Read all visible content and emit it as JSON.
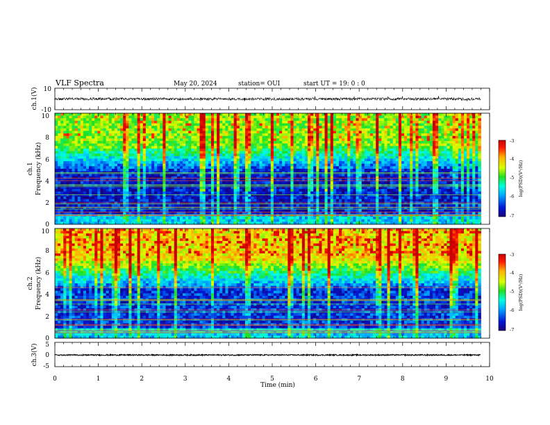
{
  "header": {
    "title": "VLF Spectra",
    "date": "May 20, 2024",
    "station": "station= OUI",
    "start_ut": "start  UT =   19: 0  : 0"
  },
  "colors": {
    "waveform": "#000000",
    "colormap": [
      "#1a0078",
      "#0018d8",
      "#00a8ff",
      "#00ffe0",
      "#20e020",
      "#d8ff00",
      "#ffb000",
      "#ff1a00",
      "#c80000"
    ]
  },
  "chart_data": [
    {
      "type": "line",
      "name": "ch1-waveform",
      "ylabel": "ch.1(V)",
      "yticks": [
        "10",
        "-10"
      ],
      "ylim": [
        -10,
        10
      ],
      "x_range": [
        0,
        9.8
      ],
      "level": 0.0,
      "noise": 1.2
    },
    {
      "type": "heatmap",
      "name": "ch1-spectrogram",
      "ylabel": "ch.1 Frequency (kHz)",
      "ylabel_top": "ch.1",
      "ylabel_bottom": "Frequency  (kHz)",
      "yticks": [
        "0",
        "2",
        "4",
        "6",
        "8",
        "10"
      ],
      "ylim": [
        0,
        10
      ],
      "x_range": [
        0,
        9.8
      ],
      "colorbar": {
        "label": "log(PSD)(V²/Hz)",
        "ticks": [
          "-3",
          "-4",
          "-5",
          "-6",
          "-7"
        ],
        "range": [
          -7,
          -3
        ]
      }
    },
    {
      "type": "heatmap",
      "name": "ch2-spectrogram",
      "ylabel": "ch.2 Frequency (kHz)",
      "ylabel_top": "ch.2",
      "ylabel_bottom": "Frequency  (kHz)",
      "yticks": [
        "0",
        "2",
        "4",
        "6",
        "8",
        "10"
      ],
      "ylim": [
        0,
        10
      ],
      "x_range": [
        0,
        9.8
      ],
      "colorbar": {
        "label": "log(PSD)(V²/Hz)",
        "ticks": [
          "-3",
          "-4",
          "-5",
          "-6",
          "-7"
        ],
        "range": [
          -7,
          -3
        ]
      }
    },
    {
      "type": "line",
      "name": "ch3-waveform",
      "ylabel": "ch.3(V)",
      "yticks": [
        "5",
        "0",
        "-5"
      ],
      "ylim": [
        -5,
        5
      ],
      "x_range": [
        0,
        9.8
      ],
      "level": -0.2,
      "noise": 0.25
    }
  ],
  "xaxis": {
    "label": "Time  (min)",
    "ticks": [
      "0",
      "1",
      "2",
      "3",
      "4",
      "5",
      "6",
      "7",
      "8",
      "9",
      "10"
    ],
    "xlim": [
      0,
      10
    ]
  }
}
